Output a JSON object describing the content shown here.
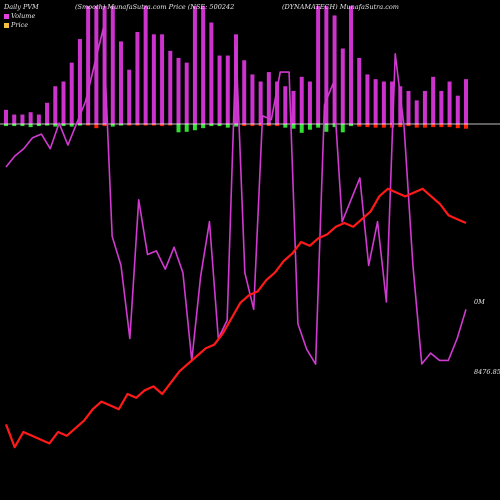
{
  "header": {
    "left": "Daily PVM",
    "center": "(Smooth) MunafaSutra.com Price (NSE: 500242",
    "right": "(DYNAMATECH) MunafaSutra.com"
  },
  "legend": {
    "items": [
      {
        "label": "Volume",
        "color": "#e040e0"
      },
      {
        "label": "Price",
        "color": "#f5c040"
      }
    ]
  },
  "colors": {
    "background": "#000000",
    "volume_line": "#d03ad0",
    "price_line": "#ff1a1a",
    "bar_up_top": "#cc33cc",
    "bar_up_bottom": "#33dd33",
    "bar_down_bottom": "#ff2200",
    "baseline": "#ffffff"
  },
  "value_labels": {
    "volume_last": "0M",
    "price_last": "8476.85"
  },
  "chart_data": {
    "type": "bar+line",
    "bars": {
      "up": [
        0.12,
        0.08,
        0.08,
        0.1,
        0.08,
        0.18,
        0.32,
        0.36,
        0.52,
        0.72,
        1.0,
        1.0,
        1.0,
        1.0,
        0.7,
        0.46,
        0.78,
        1.0,
        0.76,
        0.76,
        0.62,
        0.56,
        0.52,
        1.0,
        1.0,
        0.86,
        0.58,
        0.58,
        0.76,
        0.54,
        0.42,
        0.36,
        0.44,
        0.36,
        0.32,
        0.28,
        0.4,
        0.36,
        1.0,
        1.0,
        0.92,
        0.64,
        1.0,
        0.56,
        0.42,
        0.38,
        0.36,
        0.36,
        0.32,
        0.28,
        0.2,
        0.28,
        0.4,
        0.28,
        0.36,
        0.24,
        0.38
      ],
      "down": [
        0.08,
        0.08,
        0.08,
        0.12,
        0.08,
        0.06,
        0.1,
        0.08,
        0.1,
        0.06,
        0.06,
        0.16,
        0.08,
        0.1,
        0.06,
        0.06,
        0.06,
        0.06,
        0.06,
        0.08,
        0.06,
        0.32,
        0.3,
        0.24,
        0.16,
        0.08,
        0.08,
        0.14,
        0.1,
        0.08,
        0.08,
        0.08,
        0.08,
        0.08,
        0.14,
        0.18,
        0.34,
        0.22,
        0.14,
        0.3,
        0.12,
        0.32,
        0.08,
        0.1,
        0.12,
        0.14,
        0.14,
        0.14,
        0.12,
        0.08,
        0.14,
        0.14,
        0.12,
        0.12,
        0.12,
        0.16,
        0.18
      ],
      "down_is_red": [
        false,
        false,
        false,
        false,
        false,
        false,
        false,
        false,
        false,
        false,
        true,
        true,
        true,
        false,
        false,
        true,
        true,
        true,
        true,
        true,
        true,
        false,
        false,
        false,
        false,
        false,
        false,
        false,
        false,
        true,
        true,
        true,
        true,
        true,
        false,
        false,
        false,
        false,
        false,
        false,
        false,
        false,
        false,
        true,
        true,
        true,
        true,
        true,
        true,
        true,
        true,
        true,
        true,
        true,
        true,
        true,
        true
      ]
    },
    "volume": [
      0.43,
      0.4,
      0.38,
      0.35,
      0.34,
      0.38,
      0.31,
      0.37,
      0.31,
      0.25,
      0.15,
      0.05,
      0.62,
      0.7,
      0.9,
      0.52,
      0.67,
      0.66,
      0.71,
      0.65,
      0.72,
      0.96,
      0.73,
      0.58,
      0.9,
      0.85,
      0.1,
      0.72,
      0.82,
      0.29,
      0.3,
      0.17,
      0.17,
      0.86,
      0.93,
      0.97,
      0.26,
      0.2,
      0.58,
      0.52,
      0.46,
      0.7,
      0.58,
      0.8,
      0.12,
      0.32,
      0.7,
      0.97,
      0.94,
      0.96,
      0.96,
      0.9,
      0.82
    ],
    "price": [
      0.88,
      0.94,
      0.9,
      0.91,
      0.92,
      0.93,
      0.9,
      0.91,
      0.89,
      0.87,
      0.84,
      0.82,
      0.83,
      0.84,
      0.8,
      0.81,
      0.79,
      0.78,
      0.8,
      0.77,
      0.74,
      0.72,
      0.7,
      0.68,
      0.67,
      0.64,
      0.6,
      0.56,
      0.54,
      0.53,
      0.5,
      0.48,
      0.45,
      0.43,
      0.4,
      0.41,
      0.39,
      0.38,
      0.36,
      0.35,
      0.36,
      0.34,
      0.32,
      0.28,
      0.26,
      0.27,
      0.28,
      0.27,
      0.26,
      0.28,
      0.3,
      0.33,
      0.34,
      0.35
    ]
  }
}
